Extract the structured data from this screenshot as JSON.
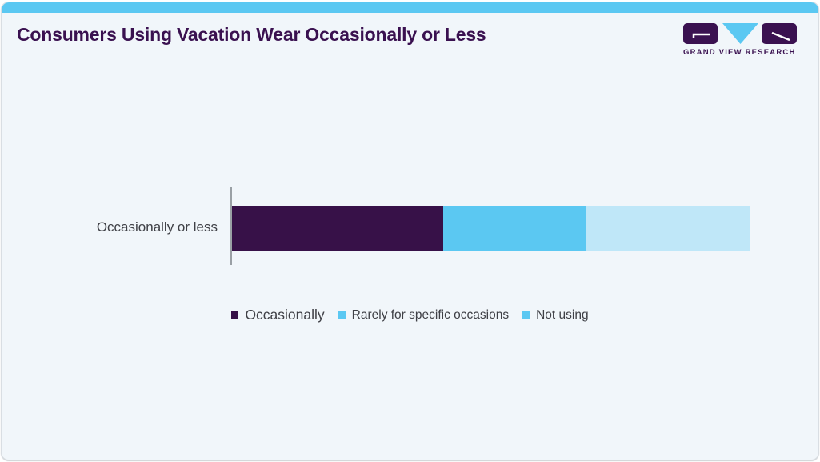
{
  "page": {
    "background": "#ffffff",
    "card_background": "#f1f6fa",
    "card_border": "#d9dee3",
    "accent_bar_color": "#5bc8f2"
  },
  "header": {
    "title": "Consumers Using Vacation Wear Occasionally or Less",
    "title_color": "#3a1150",
    "logo": {
      "text": "GRAND VIEW RESEARCH",
      "purple": "#3a1150",
      "blue": "#5bc8f2"
    }
  },
  "chart_data": {
    "type": "bar",
    "orientation": "horizontal",
    "stacked": true,
    "title": "Consumers Using Vacation Wear Occasionally or Less",
    "categories": [
      "Occasionally or less"
    ],
    "series": [
      {
        "name": "Occasionally",
        "color": "#371148",
        "values": [
          40.8
        ]
      },
      {
        "name": "Rarely for specific occasions",
        "color": "#5bc8f2",
        "values": [
          27.5
        ]
      },
      {
        "name": "Not using",
        "color": "#bfe7f8",
        "values": [
          31.7
        ]
      }
    ],
    "xlim": [
      0,
      100
    ],
    "xlabel": "",
    "ylabel": "",
    "grid": false,
    "value_labels": false,
    "axis_line_color": "#9aa0a5",
    "category_label_color": "#3f4046",
    "legend": {
      "position": "bottom",
      "items": [
        {
          "label": "Occasionally",
          "marker_color": "#371148"
        },
        {
          "label": "Rarely for specific occasions",
          "marker_color": "#5bc8f2"
        },
        {
          "label": "Not using",
          "marker_color": "#5bc8f2"
        }
      ]
    }
  }
}
